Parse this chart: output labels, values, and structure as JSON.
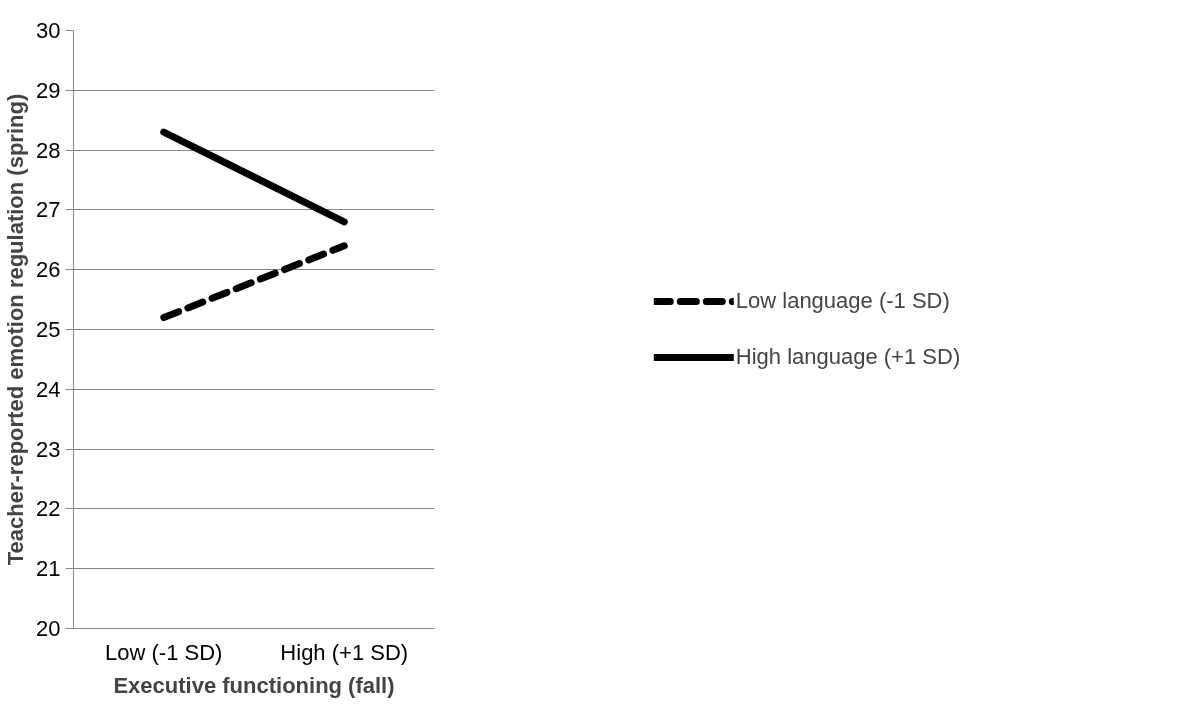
{
  "chart_data": {
    "type": "line",
    "xlabel": "Executive functioning (fall)",
    "ylabel": "Teacher-reported emotion regulation (spring)",
    "categories": [
      "Low (-1 SD)",
      "High (+1 SD)"
    ],
    "series": [
      {
        "name": "Low language (-1 SD)",
        "color": "#000000",
        "values": [
          25.2,
          26.4
        ],
        "line_style": "dashed"
      },
      {
        "name": "High language (+1 SD)",
        "color": "#000000",
        "values": [
          28.3,
          26.8
        ],
        "line_style": "solid"
      }
    ],
    "ylim": [
      20,
      30
    ],
    "yticks": [
      20,
      21,
      22,
      23,
      24,
      25,
      26,
      27,
      28,
      29,
      30
    ],
    "grid": "y",
    "legend": "right",
    "marker": "none"
  }
}
